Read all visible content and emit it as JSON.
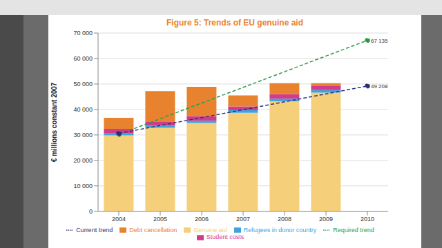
{
  "chart_data": {
    "type": "bar",
    "title": "Figure 5: Trends of EU genuine aid",
    "y_label": "€ millions constant 2007",
    "categories": [
      "2004",
      "2005",
      "2006",
      "2007",
      "2008",
      "2009",
      "2010"
    ],
    "stacked": true,
    "grid": true,
    "legend": "bottom",
    "ylim": [
      0,
      70000
    ],
    "yticks": [
      0,
      {
        "value": 10000,
        "label": "10 000"
      },
      {
        "value": 20000,
        "label": "20 000"
      },
      {
        "value": 30000,
        "label": "30 000"
      },
      {
        "value": 40000,
        "label": "40 000"
      },
      {
        "value": 50000,
        "label": "50 000"
      },
      {
        "value": 60000,
        "label": "60 000"
      },
      {
        "value": 70000,
        "label": "70 000"
      }
    ],
    "series": [
      {
        "name": "Genuine aid",
        "type": "bar",
        "color": "#f6cf7a",
        "values": [
          29800,
          32800,
          34700,
          38700,
          43200,
          46600,
          null
        ]
      },
      {
        "name": "Refugees in donor country",
        "type": "bar",
        "color": "#3fa3dc",
        "values": [
          800,
          800,
          900,
          1000,
          1000,
          1000,
          null
        ]
      },
      {
        "name": "Student costs",
        "type": "bar",
        "color": "#d23a8c",
        "values": [
          1800,
          1500,
          1700,
          1500,
          1800,
          1800,
          null
        ]
      },
      {
        "name": "Debt cancellation",
        "type": "bar",
        "color": "#e8822f",
        "values": [
          4300,
          12100,
          11600,
          4300,
          4300,
          900,
          null
        ]
      },
      {
        "name": "Required trend",
        "type": "line",
        "color": "#2e9a48",
        "line_style": "dashed",
        "marker": "circle",
        "data_labels": true,
        "values": [
          30200,
          null,
          null,
          null,
          null,
          null,
          67135
        ],
        "value_labels": [
          null,
          null,
          null,
          null,
          null,
          null,
          "67 135"
        ]
      },
      {
        "name": "Current trend",
        "type": "line",
        "color": "#2b2f7a",
        "line_style": "dashed",
        "marker": "circle",
        "data_labels": true,
        "values": [
          30600,
          null,
          null,
          null,
          null,
          null,
          49208
        ],
        "value_labels": [
          null,
          null,
          null,
          null,
          null,
          null,
          "49 208"
        ]
      }
    ]
  }
}
